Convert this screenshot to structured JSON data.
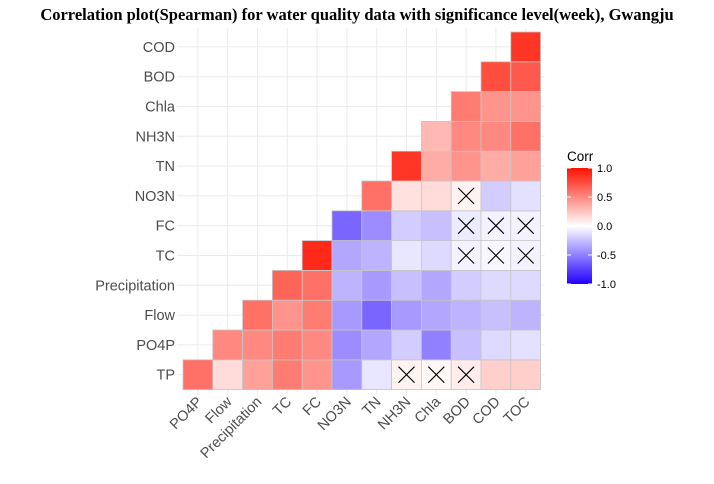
{
  "chart_data": {
    "type": "heatmap",
    "title": "Correlation plot(Spearman) for water quality data with significance level(week), Gwangju",
    "xlabel": "",
    "ylabel": "",
    "x_labels": [
      "PO4P",
      "Flow",
      "Precipitation",
      "TC",
      "FC",
      "NO3N",
      "TN",
      "NH3N",
      "Chla",
      "BOD",
      "COD",
      "TOC"
    ],
    "y_labels": [
      "TP",
      "PO4P",
      "Flow",
      "Precipitation",
      "TC",
      "FC",
      "NO3N",
      "TN",
      "NH3N",
      "Chla",
      "BOD",
      "COD"
    ],
    "grid": true,
    "legend": {
      "title": "Corr",
      "position": "right",
      "ticks": [
        "1.0",
        "0.5",
        "0.0",
        "-0.5",
        "-1.0"
      ],
      "tick_values": [
        1.0,
        0.5,
        0.0,
        -0.5,
        -1.0
      ],
      "range": [
        -1.0,
        1.0
      ],
      "colors": {
        "low": "#2200ff",
        "mid": "#ffffff",
        "high": "#ff1100"
      }
    },
    "cells": [
      {
        "x": "PO4P",
        "y": "TP",
        "value": 0.6,
        "insignificant": false
      },
      {
        "x": "Flow",
        "y": "TP",
        "value": 0.15,
        "insignificant": false
      },
      {
        "x": "Precipitation",
        "y": "TP",
        "value": 0.4,
        "insignificant": false
      },
      {
        "x": "TC",
        "y": "TP",
        "value": 0.55,
        "insignificant": false
      },
      {
        "x": "FC",
        "y": "TP",
        "value": 0.45,
        "insignificant": false
      },
      {
        "x": "NO3N",
        "y": "TP",
        "value": -0.4,
        "insignificant": false
      },
      {
        "x": "TN",
        "y": "TP",
        "value": -0.1,
        "insignificant": false
      },
      {
        "x": "NH3N",
        "y": "TP",
        "value": 0.05,
        "insignificant": true
      },
      {
        "x": "Chla",
        "y": "TP",
        "value": 0.03,
        "insignificant": true
      },
      {
        "x": "BOD",
        "y": "TP",
        "value": 0.08,
        "insignificant": true
      },
      {
        "x": "COD",
        "y": "TP",
        "value": 0.2,
        "insignificant": false
      },
      {
        "x": "TOC",
        "y": "TP",
        "value": 0.2,
        "insignificant": false
      },
      {
        "x": "Flow",
        "y": "PO4P",
        "value": 0.5,
        "insignificant": false
      },
      {
        "x": "Precipitation",
        "y": "PO4P",
        "value": 0.5,
        "insignificant": false
      },
      {
        "x": "TC",
        "y": "PO4P",
        "value": 0.55,
        "insignificant": false
      },
      {
        "x": "FC",
        "y": "PO4P",
        "value": 0.5,
        "insignificant": false
      },
      {
        "x": "NO3N",
        "y": "PO4P",
        "value": -0.45,
        "insignificant": false
      },
      {
        "x": "TN",
        "y": "PO4P",
        "value": -0.35,
        "insignificant": false
      },
      {
        "x": "NH3N",
        "y": "PO4P",
        "value": -0.2,
        "insignificant": false
      },
      {
        "x": "Chla",
        "y": "PO4P",
        "value": -0.5,
        "insignificant": false
      },
      {
        "x": "BOD",
        "y": "PO4P",
        "value": -0.25,
        "insignificant": false
      },
      {
        "x": "COD",
        "y": "PO4P",
        "value": -0.15,
        "insignificant": false
      },
      {
        "x": "TOC",
        "y": "PO4P",
        "value": -0.12,
        "insignificant": false
      },
      {
        "x": "Precipitation",
        "y": "Flow",
        "value": 0.6,
        "insignificant": false
      },
      {
        "x": "TC",
        "y": "Flow",
        "value": 0.45,
        "insignificant": false
      },
      {
        "x": "FC",
        "y": "Flow",
        "value": 0.55,
        "insignificant": false
      },
      {
        "x": "NO3N",
        "y": "Flow",
        "value": -0.4,
        "insignificant": false
      },
      {
        "x": "TN",
        "y": "Flow",
        "value": -0.6,
        "insignificant": false
      },
      {
        "x": "NH3N",
        "y": "Flow",
        "value": -0.4,
        "insignificant": false
      },
      {
        "x": "Chla",
        "y": "Flow",
        "value": -0.35,
        "insignificant": false
      },
      {
        "x": "BOD",
        "y": "Flow",
        "value": -0.3,
        "insignificant": false
      },
      {
        "x": "COD",
        "y": "Flow",
        "value": -0.25,
        "insignificant": false
      },
      {
        "x": "TOC",
        "y": "Flow",
        "value": -0.3,
        "insignificant": false
      },
      {
        "x": "TC",
        "y": "Precipitation",
        "value": 0.65,
        "insignificant": false
      },
      {
        "x": "FC",
        "y": "Precipitation",
        "value": 0.6,
        "insignificant": false
      },
      {
        "x": "NO3N",
        "y": "Precipitation",
        "value": -0.3,
        "insignificant": false
      },
      {
        "x": "TN",
        "y": "Precipitation",
        "value": -0.4,
        "insignificant": false
      },
      {
        "x": "NH3N",
        "y": "Precipitation",
        "value": -0.25,
        "insignificant": false
      },
      {
        "x": "Chla",
        "y": "Precipitation",
        "value": -0.35,
        "insignificant": false
      },
      {
        "x": "BOD",
        "y": "Precipitation",
        "value": -0.2,
        "insignificant": false
      },
      {
        "x": "COD",
        "y": "Precipitation",
        "value": -0.15,
        "insignificant": false
      },
      {
        "x": "TOC",
        "y": "Precipitation",
        "value": -0.15,
        "insignificant": false
      },
      {
        "x": "FC",
        "y": "TC",
        "value": 0.9,
        "insignificant": false
      },
      {
        "x": "NO3N",
        "y": "TC",
        "value": -0.35,
        "insignificant": false
      },
      {
        "x": "TN",
        "y": "TC",
        "value": -0.3,
        "insignificant": false
      },
      {
        "x": "NH3N",
        "y": "TC",
        "value": -0.1,
        "insignificant": false
      },
      {
        "x": "Chla",
        "y": "TC",
        "value": -0.15,
        "insignificant": false
      },
      {
        "x": "BOD",
        "y": "TC",
        "value": -0.05,
        "insignificant": true
      },
      {
        "x": "COD",
        "y": "TC",
        "value": -0.03,
        "insignificant": true
      },
      {
        "x": "TOC",
        "y": "TC",
        "value": -0.05,
        "insignificant": true
      },
      {
        "x": "NO3N",
        "y": "FC",
        "value": -0.6,
        "insignificant": false
      },
      {
        "x": "TN",
        "y": "FC",
        "value": -0.45,
        "insignificant": false
      },
      {
        "x": "NH3N",
        "y": "FC",
        "value": -0.2,
        "insignificant": false
      },
      {
        "x": "Chla",
        "y": "FC",
        "value": -0.25,
        "insignificant": false
      },
      {
        "x": "BOD",
        "y": "FC",
        "value": -0.08,
        "insignificant": true
      },
      {
        "x": "COD",
        "y": "FC",
        "value": -0.05,
        "insignificant": true
      },
      {
        "x": "TOC",
        "y": "FC",
        "value": -0.05,
        "insignificant": true
      },
      {
        "x": "TN",
        "y": "NO3N",
        "value": 0.6,
        "insignificant": false
      },
      {
        "x": "NH3N",
        "y": "NO3N",
        "value": 0.12,
        "insignificant": false
      },
      {
        "x": "Chla",
        "y": "NO3N",
        "value": 0.15,
        "insignificant": false
      },
      {
        "x": "BOD",
        "y": "NO3N",
        "value": 0.05,
        "insignificant": true
      },
      {
        "x": "COD",
        "y": "NO3N",
        "value": -0.2,
        "insignificant": false
      },
      {
        "x": "TOC",
        "y": "NO3N",
        "value": -0.12,
        "insignificant": false
      },
      {
        "x": "NH3N",
        "y": "TN",
        "value": 0.85,
        "insignificant": false
      },
      {
        "x": "Chla",
        "y": "TN",
        "value": 0.35,
        "insignificant": false
      },
      {
        "x": "BOD",
        "y": "TN",
        "value": 0.45,
        "insignificant": false
      },
      {
        "x": "COD",
        "y": "TN",
        "value": 0.35,
        "insignificant": false
      },
      {
        "x": "TOC",
        "y": "TN",
        "value": 0.4,
        "insignificant": false
      },
      {
        "x": "Chla",
        "y": "NH3N",
        "value": 0.3,
        "insignificant": false
      },
      {
        "x": "BOD",
        "y": "NH3N",
        "value": 0.5,
        "insignificant": false
      },
      {
        "x": "COD",
        "y": "NH3N",
        "value": 0.5,
        "insignificant": false
      },
      {
        "x": "TOC",
        "y": "NH3N",
        "value": 0.6,
        "insignificant": false
      },
      {
        "x": "BOD",
        "y": "Chla",
        "value": 0.55,
        "insignificant": false
      },
      {
        "x": "COD",
        "y": "Chla",
        "value": 0.45,
        "insignificant": false
      },
      {
        "x": "TOC",
        "y": "Chla",
        "value": 0.45,
        "insignificant": false
      },
      {
        "x": "COD",
        "y": "BOD",
        "value": 0.75,
        "insignificant": false
      },
      {
        "x": "TOC",
        "y": "BOD",
        "value": 0.7,
        "insignificant": false
      },
      {
        "x": "TOC",
        "y": "COD",
        "value": 0.85,
        "insignificant": false
      }
    ]
  }
}
